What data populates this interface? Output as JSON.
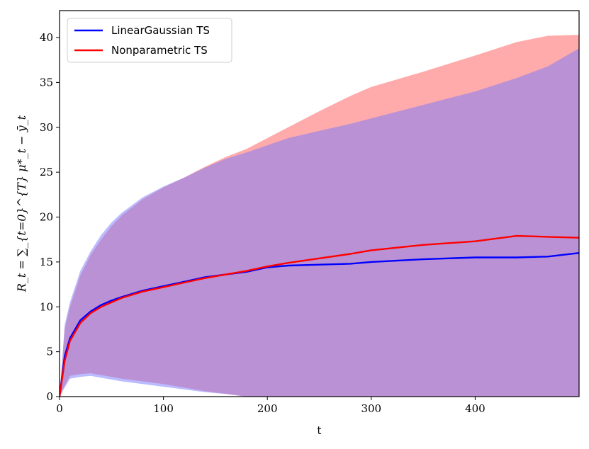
{
  "chart_data": {
    "type": "line",
    "xlabel": "t",
    "ylabel": "R_t = ∑_{t=0}^{T} μ*_t − ȳ_t",
    "xlim": [
      0,
      500
    ],
    "ylim": [
      0,
      43
    ],
    "x_ticks": [
      0,
      100,
      200,
      300,
      400
    ],
    "y_ticks": [
      0,
      5,
      10,
      15,
      20,
      25,
      30,
      35,
      40
    ],
    "grid": false,
    "legend_position": "top-left",
    "x": [
      0,
      5,
      10,
      20,
      30,
      40,
      50,
      60,
      80,
      100,
      120,
      140,
      160,
      180,
      200,
      220,
      250,
      280,
      300,
      350,
      400,
      440,
      470,
      500
    ],
    "series": [
      {
        "name": "LinearGaussian TS",
        "color": "#0000ff",
        "band_color": "#7777ff",
        "values": [
          0,
          4.5,
          6.5,
          8.5,
          9.5,
          10.2,
          10.7,
          11.1,
          11.8,
          12.3,
          12.8,
          13.3,
          13.6,
          13.9,
          14.4,
          14.6,
          14.7,
          14.8,
          15.0,
          15.3,
          15.5,
          15.5,
          15.6,
          16.0
        ],
        "band_upper": [
          0,
          8.0,
          10.5,
          14.0,
          16.2,
          18.0,
          19.4,
          20.5,
          22.2,
          23.4,
          24.4,
          25.5,
          26.5,
          27.2,
          28.0,
          28.8,
          29.6,
          30.4,
          31.0,
          32.5,
          34.0,
          35.5,
          36.8,
          38.8
        ],
        "band_lower": [
          0,
          1.0,
          2.0,
          2.2,
          2.3,
          2.1,
          1.9,
          1.7,
          1.4,
          1.1,
          0.8,
          0.5,
          0.3,
          0,
          0,
          0,
          0,
          0,
          0,
          0,
          0,
          0,
          0,
          0
        ]
      },
      {
        "name": "Nonparametric TS",
        "color": "#ff0000",
        "band_color": "#ff7777",
        "values": [
          0,
          4.0,
          6.2,
          8.2,
          9.3,
          10.0,
          10.5,
          11.0,
          11.7,
          12.2,
          12.7,
          13.2,
          13.6,
          14.0,
          14.5,
          14.9,
          15.4,
          15.9,
          16.3,
          16.9,
          17.3,
          17.9,
          17.8,
          17.7
        ],
        "band_upper": [
          0,
          7.5,
          10.0,
          13.5,
          15.8,
          17.5,
          19.0,
          20.2,
          22.0,
          23.3,
          24.4,
          25.6,
          26.7,
          27.6,
          28.8,
          30.0,
          31.8,
          33.5,
          34.5,
          36.2,
          38.0,
          39.5,
          40.2,
          40.3
        ],
        "band_lower": [
          0,
          1.2,
          2.3,
          2.5,
          2.6,
          2.4,
          2.2,
          2.0,
          1.7,
          1.4,
          1.0,
          0.6,
          0.3,
          0,
          0,
          0,
          0,
          0,
          0,
          0,
          0,
          0,
          0,
          0
        ]
      }
    ]
  }
}
